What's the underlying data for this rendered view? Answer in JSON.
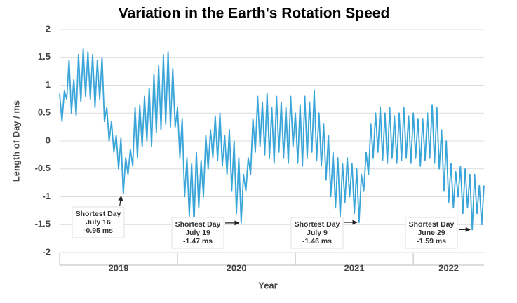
{
  "chart_data": {
    "type": "line",
    "title": "Variation in the Earth's Rotation Speed",
    "x_label": "Year",
    "y_label": "Length of Day / ms",
    "xlim": [
      2019,
      2022.6
    ],
    "xticks": [
      2019,
      2020,
      2021,
      2022
    ],
    "ylim": [
      -2,
      2
    ],
    "yticks": [
      2,
      1.5,
      1,
      0.5,
      0,
      -0.5,
      -1,
      -1.5,
      -2
    ],
    "grid": true,
    "x": [
      2019.0,
      2019.02,
      2019.04,
      2019.06,
      2019.08,
      2019.1,
      2019.12,
      2019.14,
      2019.16,
      2019.18,
      2019.2,
      2019.22,
      2019.24,
      2019.26,
      2019.28,
      2019.3,
      2019.32,
      2019.34,
      2019.36,
      2019.38,
      2019.4,
      2019.42,
      2019.44,
      2019.46,
      2019.48,
      2019.5,
      2019.52,
      2019.54,
      2019.56,
      2019.58,
      2019.6,
      2019.62,
      2019.64,
      2019.66,
      2019.68,
      2019.7,
      2019.72,
      2019.74,
      2019.76,
      2019.78,
      2019.8,
      2019.82,
      2019.84,
      2019.86,
      2019.88,
      2019.9,
      2019.92,
      2019.94,
      2019.96,
      2019.98,
      2020.0,
      2020.02,
      2020.04,
      2020.06,
      2020.08,
      2020.1,
      2020.12,
      2020.14,
      2020.16,
      2020.18,
      2020.2,
      2020.22,
      2020.24,
      2020.26,
      2020.28,
      2020.3,
      2020.32,
      2020.34,
      2020.36,
      2020.38,
      2020.4,
      2020.42,
      2020.44,
      2020.46,
      2020.48,
      2020.5,
      2020.52,
      2020.54,
      2020.56,
      2020.58,
      2020.6,
      2020.62,
      2020.64,
      2020.66,
      2020.68,
      2020.7,
      2020.72,
      2020.74,
      2020.76,
      2020.78,
      2020.8,
      2020.82,
      2020.84,
      2020.86,
      2020.88,
      2020.9,
      2020.92,
      2020.94,
      2020.96,
      2020.98,
      2021.0,
      2021.02,
      2021.04,
      2021.06,
      2021.08,
      2021.1,
      2021.12,
      2021.14,
      2021.16,
      2021.18,
      2021.2,
      2021.22,
      2021.24,
      2021.26,
      2021.28,
      2021.3,
      2021.32,
      2021.34,
      2021.36,
      2021.38,
      2021.4,
      2021.42,
      2021.44,
      2021.46,
      2021.48,
      2021.5,
      2021.52,
      2021.54,
      2021.56,
      2021.58,
      2021.6,
      2021.62,
      2021.64,
      2021.66,
      2021.68,
      2021.7,
      2021.72,
      2021.74,
      2021.76,
      2021.78,
      2021.8,
      2021.82,
      2021.84,
      2021.86,
      2021.88,
      2021.9,
      2021.92,
      2021.94,
      2021.96,
      2021.98,
      2022.0,
      2022.02,
      2022.04,
      2022.06,
      2022.08,
      2022.1,
      2022.12,
      2022.14,
      2022.16,
      2022.18,
      2022.2,
      2022.22,
      2022.24,
      2022.26,
      2022.28,
      2022.3,
      2022.32,
      2022.34,
      2022.36,
      2022.38,
      2022.4,
      2022.42,
      2022.44,
      2022.46,
      2022.48,
      2022.5,
      2022.52,
      2022.54,
      2022.56,
      2022.58,
      2022.6
    ],
    "series": [
      {
        "name": "Length of Day",
        "color": "#3aa5d8",
        "values": [
          0.85,
          0.35,
          0.9,
          0.75,
          1.45,
          0.5,
          1.1,
          0.45,
          1.55,
          0.7,
          1.65,
          0.8,
          1.6,
          0.75,
          1.55,
          0.6,
          1.45,
          0.75,
          1.5,
          0.35,
          0.6,
          0.0,
          0.35,
          -0.2,
          0.1,
          -0.5,
          0.05,
          -0.95,
          -0.3,
          -0.6,
          -0.15,
          -0.45,
          0.6,
          -0.3,
          0.65,
          -0.1,
          0.8,
          0.0,
          0.95,
          -0.1,
          1.2,
          0.15,
          1.35,
          0.2,
          1.55,
          0.3,
          1.6,
          0.25,
          1.3,
          0.25,
          0.6,
          -0.3,
          0.4,
          -1.0,
          -0.3,
          -1.35,
          -0.4,
          -1.5,
          -0.2,
          -1.2,
          -0.35,
          -1.0,
          0.1,
          -0.5,
          0.2,
          -0.3,
          0.45,
          -0.35,
          0.5,
          -0.45,
          0.1,
          -0.6,
          0.2,
          -0.9,
          0.0,
          -1.3,
          -0.3,
          -1.47,
          -0.6,
          -0.9,
          -0.3,
          -0.6,
          0.4,
          -0.2,
          0.8,
          -0.1,
          0.7,
          -0.25,
          0.85,
          -0.3,
          0.6,
          -0.4,
          0.8,
          -0.2,
          0.7,
          -0.3,
          0.6,
          -0.4,
          0.8,
          -0.1,
          0.5,
          -0.4,
          0.65,
          -0.45,
          0.8,
          -0.3,
          0.7,
          -0.2,
          0.9,
          -0.35,
          0.5,
          -0.45,
          0.3,
          -0.7,
          0.1,
          -1.0,
          -0.2,
          -1.2,
          -0.3,
          -1.35,
          -0.4,
          -1.1,
          -0.3,
          -1.0,
          -0.4,
          -1.3,
          -0.5,
          -1.46,
          -0.6,
          -0.9,
          -0.2,
          -0.6,
          0.3,
          -0.3,
          0.5,
          -0.2,
          0.6,
          -0.35,
          0.5,
          -0.4,
          0.6,
          -0.3,
          0.45,
          -0.4,
          0.5,
          -0.35,
          0.6,
          -0.3,
          0.45,
          -0.4,
          0.5,
          -0.3,
          0.4,
          -0.45,
          0.4,
          -0.35,
          0.5,
          -0.3,
          0.65,
          -0.4,
          0.6,
          -0.5,
          0.2,
          -0.9,
          0.0,
          -1.1,
          -0.4,
          -1.2,
          -0.55,
          -1.0,
          -0.45,
          -1.3,
          -0.5,
          -1.2,
          -0.6,
          -1.59,
          -0.6,
          -1.3,
          -0.8,
          -1.5,
          -0.8
        ]
      }
    ],
    "annotations": [
      {
        "title": "Shortest Day",
        "date": "July 16",
        "x": 2019.54,
        "value": -0.95,
        "value_label": "-0.95 ms"
      },
      {
        "title": "Shortest Day",
        "date": "July 19",
        "x": 2020.54,
        "value": -1.47,
        "value_label": "-1.47 ms"
      },
      {
        "title": "Shortest Day",
        "date": "July 9",
        "x": 2021.54,
        "value": -1.46,
        "value_label": "-1.46 ms"
      },
      {
        "title": "Shortest Day",
        "date": "June 29",
        "x": 2022.5,
        "value": -1.59,
        "value_label": "-1.59 ms"
      }
    ]
  }
}
